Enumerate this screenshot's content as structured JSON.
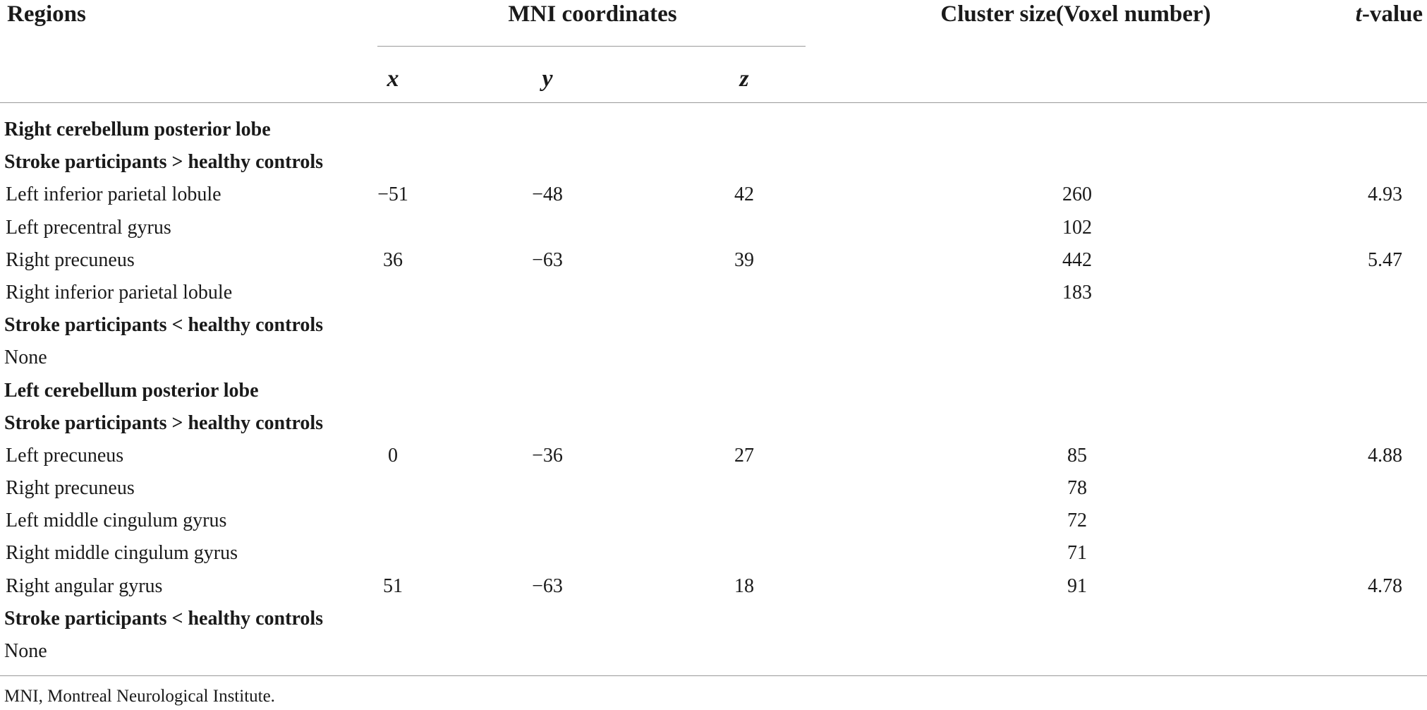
{
  "headers": {
    "regions": "Regions",
    "mni": "MNI coordinates",
    "cluster": "Cluster size(Voxel number)",
    "t_italic": "t",
    "t_rest": "-value",
    "x": "x",
    "y": "y",
    "z": "z"
  },
  "rows": [
    {
      "type": "group",
      "region": "Right cerebellum posterior lobe",
      "x": "",
      "y": "",
      "z": "",
      "cluster": "",
      "t": ""
    },
    {
      "type": "comp",
      "region": "Stroke participants > healthy controls",
      "x": "",
      "y": "",
      "z": "",
      "cluster": "",
      "t": ""
    },
    {
      "type": "data",
      "region": "Left inferior parietal lobule",
      "x": "−51",
      "y": "−48",
      "z": "42",
      "cluster": "260",
      "t": "4.93"
    },
    {
      "type": "data",
      "region": "Left precentral gyrus",
      "x": "",
      "y": "",
      "z": "",
      "cluster": "102",
      "t": ""
    },
    {
      "type": "data",
      "region": "Right precuneus",
      "x": "36",
      "y": "−63",
      "z": "39",
      "cluster": "442",
      "t": "5.47"
    },
    {
      "type": "data",
      "region": "Right inferior parietal lobule",
      "x": "",
      "y": "",
      "z": "",
      "cluster": "183",
      "t": ""
    },
    {
      "type": "comp",
      "region": "Stroke participants < healthy controls",
      "x": "",
      "y": "",
      "z": "",
      "cluster": "",
      "t": ""
    },
    {
      "type": "none",
      "region": "None",
      "x": "",
      "y": "",
      "z": "",
      "cluster": "",
      "t": ""
    },
    {
      "type": "group",
      "region": "Left cerebellum posterior lobe",
      "x": "",
      "y": "",
      "z": "",
      "cluster": "",
      "t": ""
    },
    {
      "type": "comp",
      "region": "Stroke participants > healthy controls",
      "x": "",
      "y": "",
      "z": "",
      "cluster": "",
      "t": ""
    },
    {
      "type": "data",
      "region": "Left precuneus",
      "x": "0",
      "y": "−36",
      "z": "27",
      "cluster": "85",
      "t": "4.88"
    },
    {
      "type": "data",
      "region": "Right precuneus",
      "x": "",
      "y": "",
      "z": "",
      "cluster": "78",
      "t": ""
    },
    {
      "type": "data",
      "region": "Left middle cingulum gyrus",
      "x": "",
      "y": "",
      "z": "",
      "cluster": "72",
      "t": ""
    },
    {
      "type": "data",
      "region": "Right middle cingulum gyrus",
      "x": "",
      "y": "",
      "z": "",
      "cluster": "71",
      "t": ""
    },
    {
      "type": "data",
      "region": "Right angular gyrus",
      "x": "51",
      "y": "−63",
      "z": "18",
      "cluster": "91",
      "t": "4.78"
    },
    {
      "type": "comp",
      "region": "Stroke participants < healthy controls",
      "x": "",
      "y": "",
      "z": "",
      "cluster": "",
      "t": ""
    },
    {
      "type": "none",
      "region": "None",
      "x": "",
      "y": "",
      "z": "",
      "cluster": "",
      "t": ""
    }
  ],
  "footnote": "MNI, Montreal Neurological Institute.",
  "colors": {
    "text": "#1a1a1a",
    "rule": "#9a9a9a",
    "background": "#ffffff"
  }
}
